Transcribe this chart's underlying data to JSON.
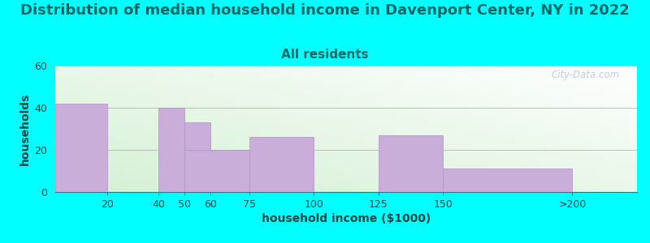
{
  "title": "Distribution of median household income in Davenport Center, NY in 2022",
  "subtitle": "All residents",
  "xlabel": "household income ($1000)",
  "ylabel": "households",
  "background_color": "#00FFFF",
  "bar_color": "#c9aed9",
  "bar_edge_color": "#b090c8",
  "title_color": "#006666",
  "subtitle_color": "#006666",
  "axis_label_color": "#004444",
  "tick_color": "#004444",
  "watermark_text": "City-Data.com",
  "title_fontsize": 13,
  "subtitle_fontsize": 11,
  "axis_label_fontsize": 10,
  "tick_fontsize": 9,
  "ylim": [
    0,
    60
  ],
  "yticks": [
    0,
    20,
    40,
    60
  ],
  "bar_positions": [
    20,
    50,
    60,
    75,
    100,
    150,
    200
  ],
  "bar_widths": [
    20,
    10,
    10,
    25,
    25,
    25,
    50
  ],
  "bar_heights": [
    42,
    40,
    33,
    20,
    26,
    27,
    11
  ],
  "xtick_positions": [
    20,
    40,
    50,
    60,
    75,
    100,
    125,
    150,
    200
  ],
  "xtick_labels": [
    "20",
    "40",
    "50",
    "60",
    "75",
    "100",
    "125",
    "150",
    ">200"
  ],
  "xmin": 0,
  "xmax": 225
}
